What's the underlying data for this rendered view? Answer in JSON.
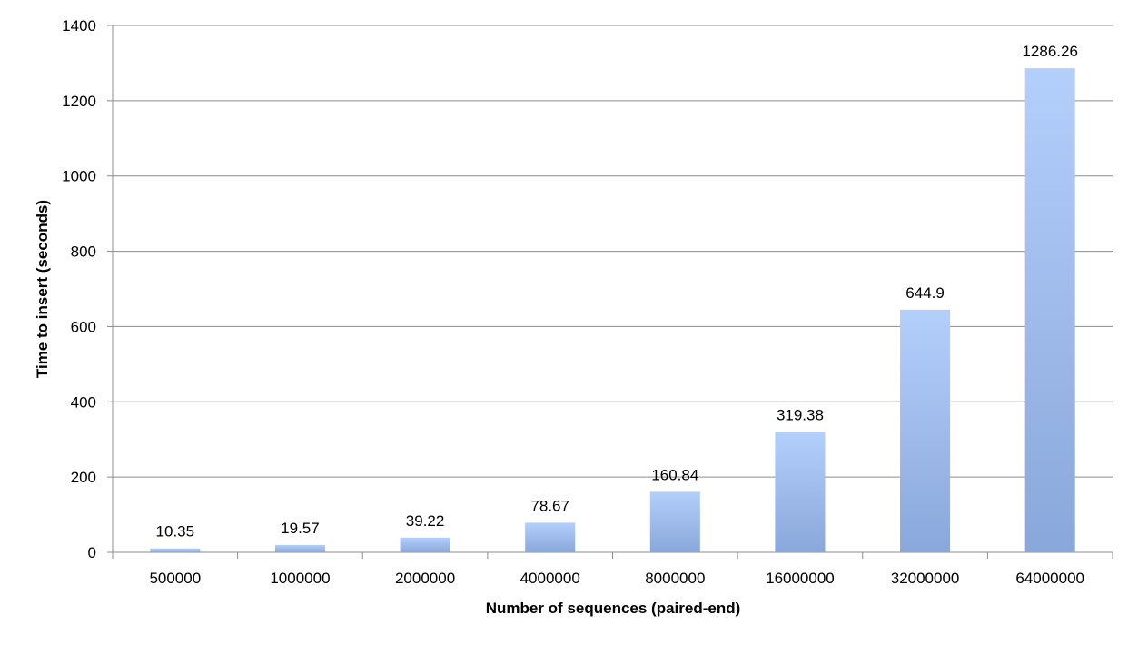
{
  "chart_data": {
    "type": "bar",
    "title": "",
    "xlabel": "Number of sequences (paired-end)",
    "ylabel": "Time to insert (seconds)",
    "categories": [
      "500000",
      "1000000",
      "2000000",
      "4000000",
      "8000000",
      "16000000",
      "32000000",
      "64000000"
    ],
    "values": [
      10.35,
      19.57,
      39.22,
      78.67,
      160.84,
      319.38,
      644.9,
      1286.26
    ],
    "data_labels": [
      "10.35",
      "19.57",
      "39.22",
      "78.67",
      "160.84",
      "319.38",
      "644.9",
      "1286.26"
    ],
    "ylim": [
      0,
      1400
    ],
    "yticks": [
      0,
      200,
      400,
      600,
      800,
      1000,
      1200,
      1400
    ],
    "grid": true,
    "legend": "none",
    "bar_color_top": "#b3cffb",
    "bar_color_bottom": "#8aa7db"
  }
}
